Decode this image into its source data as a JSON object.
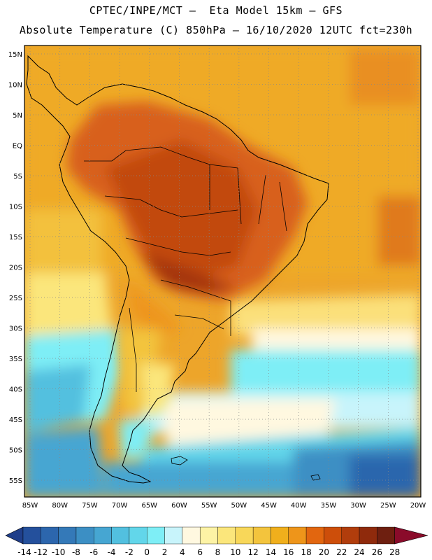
{
  "header": {
    "line1": "CPTEC/INPE/MCT –  Eta Model 15km – GFS",
    "line2": "Absolute Temperature (C) 850hPa – 16/10/2020 12UTC fct=230h"
  },
  "map": {
    "lat_labels": [
      "15N",
      "10N",
      "5N",
      "EQ",
      "5S",
      "10S",
      "15S",
      "20S",
      "25S",
      "30S",
      "35S",
      "40S",
      "45S",
      "50S",
      "55S"
    ],
    "lon_labels": [
      "85W",
      "80W",
      "75W",
      "70W",
      "65W",
      "60W",
      "55W",
      "50W",
      "45W",
      "40W",
      "35W",
      "30W",
      "25W",
      "20W"
    ],
    "lat_range": [
      15,
      -55
    ],
    "lon_range": [
      -85,
      -20
    ],
    "gridlines": "dotted"
  },
  "colorbar": {
    "levels": [
      "-14",
      "-12",
      "-10",
      "-8",
      "-6",
      "-4",
      "-2",
      "0",
      "2",
      "4",
      "6",
      "8",
      "10",
      "12",
      "14",
      "16",
      "18",
      "20",
      "22",
      "24",
      "26",
      "28"
    ],
    "colors": [
      "#1f3e8a",
      "#24509c",
      "#2c66ad",
      "#3479b8",
      "#3c8fc4",
      "#46a6d2",
      "#52c0df",
      "#62d6ea",
      "#7eeef6",
      "#c8f4fb",
      "#fff8e0",
      "#fdf3a5",
      "#fbe67b",
      "#f8d759",
      "#f3c43d",
      "#f0af1c",
      "#ee951a",
      "#e2660f",
      "#cd4e0a",
      "#b13d0c",
      "#8f2a0c",
      "#6e1f10",
      "#8a0b2a"
    ]
  }
}
